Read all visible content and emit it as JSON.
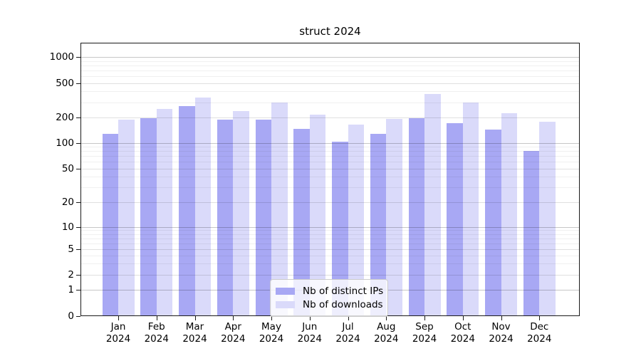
{
  "chart_data": {
    "type": "bar",
    "title": "struct 2024",
    "categories": [
      "Jan",
      "Feb",
      "Mar",
      "Apr",
      "May",
      "Jun",
      "Jul",
      "Aug",
      "Sep",
      "Oct",
      "Nov",
      "Dec"
    ],
    "category_year": "2024",
    "series": [
      {
        "name": "Nb of distinct IPs",
        "color": "#a8a8f4",
        "values": [
          127,
          198,
          271,
          188,
          189,
          146,
          104,
          129,
          197,
          170,
          143,
          81
        ]
      },
      {
        "name": "Nb of downloads",
        "color": "#dadafa",
        "values": [
          190,
          252,
          340,
          238,
          296,
          216,
          165,
          192,
          370,
          298,
          222,
          178
        ]
      }
    ],
    "yscale": "symlog",
    "yticks": [
      0,
      1,
      2,
      5,
      10,
      20,
      50,
      100,
      200,
      500,
      1000
    ],
    "ylim": [
      0,
      1400
    ],
    "grid": "on",
    "legend_position": "lower center",
    "xlabel": "",
    "ylabel": ""
  },
  "colors": {
    "background": "#ffffff",
    "spine": "#1a1a1a",
    "bar_ips": "#a8a8f4",
    "bar_downloads": "#dadafa"
  }
}
